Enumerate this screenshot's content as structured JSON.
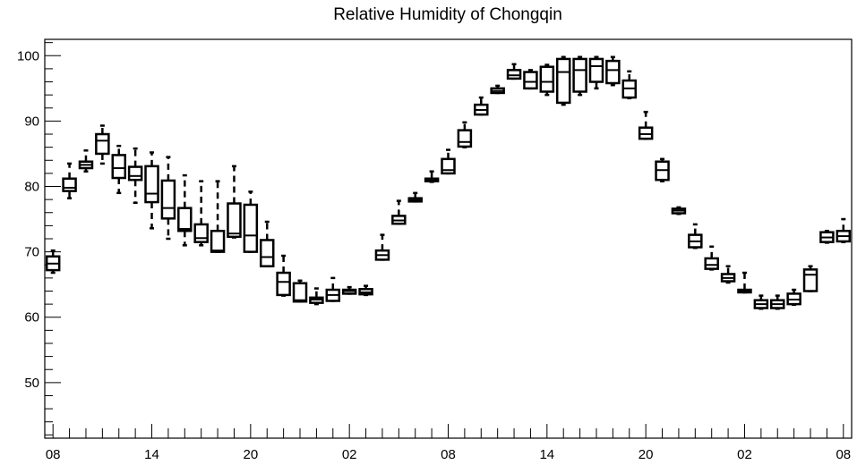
{
  "chart_data": {
    "type": "box",
    "title": "Relative Humidity of Chongqin",
    "xlabel": "",
    "ylabel": "",
    "ylim": [
      41.5,
      102.5
    ],
    "xlim": [
      -0.5,
      48.5
    ],
    "y_ticks": [
      50,
      60,
      70,
      80,
      90,
      100
    ],
    "x_tick_labels": [
      {
        "x": 0,
        "label": "08"
      },
      {
        "x": 6,
        "label": "14"
      },
      {
        "x": 12,
        "label": "20"
      },
      {
        "x": 18,
        "label": "02"
      },
      {
        "x": 24,
        "label": "08"
      },
      {
        "x": 30,
        "label": "14"
      },
      {
        "x": 36,
        "label": "20"
      },
      {
        "x": 42,
        "label": "02"
      },
      {
        "x": 48,
        "label": "08"
      }
    ],
    "grid": false,
    "boxes": [
      {
        "x": 0,
        "whisker_low": 66.8,
        "q1": 67.2,
        "median": 68.2,
        "q3": 69.3,
        "whisker_high": 70.2
      },
      {
        "x": 1,
        "whisker_low": 78.2,
        "q1": 79.3,
        "median": 79.8,
        "q3": 81.2,
        "whisker_high": 83.5
      },
      {
        "x": 2,
        "whisker_low": 82.3,
        "q1": 82.8,
        "median": 83.3,
        "q3": 83.8,
        "whisker_high": 85.5
      },
      {
        "x": 3,
        "whisker_low": 83.5,
        "q1": 85.0,
        "median": 87.0,
        "q3": 88.0,
        "whisker_high": 89.3
      },
      {
        "x": 4,
        "whisker_low": 79.0,
        "q1": 81.3,
        "median": 82.8,
        "q3": 84.8,
        "whisker_high": 86.2
      },
      {
        "x": 5,
        "whisker_low": 77.5,
        "q1": 81.0,
        "median": 81.6,
        "q3": 83.0,
        "whisker_high": 85.8
      },
      {
        "x": 6,
        "whisker_low": 73.6,
        "q1": 77.6,
        "median": 78.9,
        "q3": 83.1,
        "whisker_high": 85.2
      },
      {
        "x": 7,
        "whisker_low": 72.0,
        "q1": 75.1,
        "median": 76.7,
        "q3": 80.9,
        "whisker_high": 84.5
      },
      {
        "x": 8,
        "whisker_low": 71.0,
        "q1": 73.2,
        "median": 73.5,
        "q3": 76.7,
        "whisker_high": 81.7
      },
      {
        "x": 9,
        "whisker_low": 71.0,
        "q1": 71.5,
        "median": 72.1,
        "q3": 74.2,
        "whisker_high": 80.8
      },
      {
        "x": 10,
        "whisker_low": 70.0,
        "q1": 70.0,
        "median": 70.2,
        "q3": 73.2,
        "whisker_high": 80.8
      },
      {
        "x": 11,
        "whisker_low": 72.2,
        "q1": 72.3,
        "median": 72.8,
        "q3": 77.4,
        "whisker_high": 83.1
      },
      {
        "x": 12,
        "whisker_low": 70.0,
        "q1": 70.0,
        "median": 72.5,
        "q3": 77.2,
        "whisker_high": 79.2
      },
      {
        "x": 13,
        "whisker_low": 67.8,
        "q1": 67.8,
        "median": 69.2,
        "q3": 71.8,
        "whisker_high": 74.6
      },
      {
        "x": 14,
        "whisker_low": 63.3,
        "q1": 63.4,
        "median": 65.4,
        "q3": 66.8,
        "whisker_high": 69.4
      },
      {
        "x": 15,
        "whisker_low": 62.4,
        "q1": 62.4,
        "median": 62.6,
        "q3": 65.2,
        "whisker_high": 65.6
      },
      {
        "x": 16,
        "whisker_low": 62.0,
        "q1": 62.2,
        "median": 62.7,
        "q3": 63.0,
        "whisker_high": 64.4
      },
      {
        "x": 17,
        "whisker_low": 62.5,
        "q1": 62.5,
        "median": 63.4,
        "q3": 64.2,
        "whisker_high": 66.0
      },
      {
        "x": 18,
        "whisker_low": 63.6,
        "q1": 63.6,
        "median": 64.0,
        "q3": 64.2,
        "whisker_high": 64.6
      },
      {
        "x": 19,
        "whisker_low": 63.4,
        "q1": 63.5,
        "median": 63.8,
        "q3": 64.3,
        "whisker_high": 64.8
      },
      {
        "x": 20,
        "whisker_low": 68.8,
        "q1": 68.8,
        "median": 69.5,
        "q3": 70.2,
        "whisker_high": 72.6
      },
      {
        "x": 21,
        "whisker_low": 74.3,
        "q1": 74.3,
        "median": 74.8,
        "q3": 75.5,
        "whisker_high": 77.8
      },
      {
        "x": 22,
        "whisker_low": 77.7,
        "q1": 77.7,
        "median": 77.9,
        "q3": 78.2,
        "whisker_high": 79.0
      },
      {
        "x": 23,
        "whisker_low": 80.7,
        "q1": 80.8,
        "median": 80.9,
        "q3": 81.2,
        "whisker_high": 82.3
      },
      {
        "x": 24,
        "whisker_low": 82.0,
        "q1": 82.0,
        "median": 82.5,
        "q3": 84.2,
        "whisker_high": 85.6
      },
      {
        "x": 25,
        "whisker_low": 86.0,
        "q1": 86.1,
        "median": 86.8,
        "q3": 88.6,
        "whisker_high": 89.8
      },
      {
        "x": 26,
        "whisker_low": 91.0,
        "q1": 91.0,
        "median": 91.7,
        "q3": 92.5,
        "whisker_high": 93.6
      },
      {
        "x": 27,
        "whisker_low": 94.3,
        "q1": 94.3,
        "median": 94.6,
        "q3": 95.0,
        "whisker_high": 95.4
      },
      {
        "x": 28,
        "whisker_low": 96.5,
        "q1": 96.5,
        "median": 97.0,
        "q3": 97.8,
        "whisker_high": 98.7
      },
      {
        "x": 29,
        "whisker_low": 95.0,
        "q1": 95.0,
        "median": 96.0,
        "q3": 97.5,
        "whisker_high": 97.8
      },
      {
        "x": 30,
        "whisker_low": 94.0,
        "q1": 94.5,
        "median": 96.0,
        "q3": 98.3,
        "whisker_high": 98.6
      },
      {
        "x": 31,
        "whisker_low": 92.5,
        "q1": 92.8,
        "median": 97.5,
        "q3": 99.5,
        "whisker_high": 99.8
      },
      {
        "x": 32,
        "whisker_low": 94.0,
        "q1": 94.5,
        "median": 97.8,
        "q3": 99.5,
        "whisker_high": 99.8
      },
      {
        "x": 33,
        "whisker_low": 95.0,
        "q1": 96.0,
        "median": 98.4,
        "q3": 99.5,
        "whisker_high": 99.8
      },
      {
        "x": 34,
        "whisker_low": 95.5,
        "q1": 95.8,
        "median": 97.8,
        "q3": 99.2,
        "whisker_high": 99.8
      },
      {
        "x": 35,
        "whisker_low": 93.5,
        "q1": 93.6,
        "median": 95.0,
        "q3": 96.2,
        "whisker_high": 97.6
      },
      {
        "x": 36,
        "whisker_low": 87.3,
        "q1": 87.3,
        "median": 88.0,
        "q3": 89.0,
        "whisker_high": 91.4
      },
      {
        "x": 37,
        "whisker_low": 80.8,
        "q1": 81.0,
        "median": 82.5,
        "q3": 83.8,
        "whisker_high": 84.2
      },
      {
        "x": 38,
        "whisker_low": 75.8,
        "q1": 75.9,
        "median": 76.3,
        "q3": 76.6,
        "whisker_high": 76.8
      },
      {
        "x": 39,
        "whisker_low": 70.6,
        "q1": 70.7,
        "median": 71.6,
        "q3": 72.6,
        "whisker_high": 74.2
      },
      {
        "x": 40,
        "whisker_low": 67.3,
        "q1": 67.4,
        "median": 68.0,
        "q3": 69.0,
        "whisker_high": 70.8
      },
      {
        "x": 41,
        "whisker_low": 65.3,
        "q1": 65.5,
        "median": 66.0,
        "q3": 66.6,
        "whisker_high": 67.8
      },
      {
        "x": 42,
        "whisker_low": 63.8,
        "q1": 63.8,
        "median": 64.0,
        "q3": 64.2,
        "whisker_high": 66.8
      },
      {
        "x": 43,
        "whisker_low": 61.3,
        "q1": 61.4,
        "median": 62.0,
        "q3": 62.6,
        "whisker_high": 63.3
      },
      {
        "x": 44,
        "whisker_low": 61.3,
        "q1": 61.4,
        "median": 62.0,
        "q3": 62.6,
        "whisker_high": 63.3
      },
      {
        "x": 45,
        "whisker_low": 61.9,
        "q1": 62.0,
        "median": 62.7,
        "q3": 63.6,
        "whisker_high": 64.2
      },
      {
        "x": 46,
        "whisker_low": 64.0,
        "q1": 64.0,
        "median": 66.5,
        "q3": 67.3,
        "whisker_high": 67.8
      },
      {
        "x": 47,
        "whisker_low": 71.4,
        "q1": 71.5,
        "median": 72.2,
        "q3": 73.0,
        "whisker_high": 73.2
      },
      {
        "x": 48,
        "whisker_low": 71.5,
        "q1": 71.6,
        "median": 72.4,
        "q3": 73.2,
        "whisker_high": 75.0
      }
    ]
  }
}
